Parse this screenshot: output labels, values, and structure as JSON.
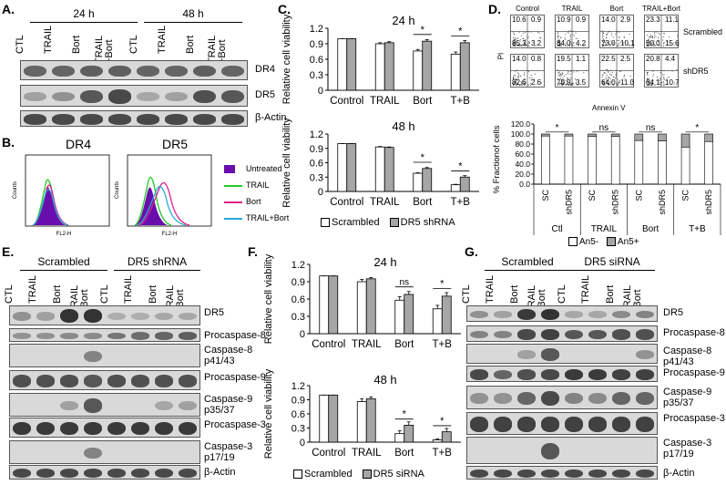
{
  "panel_A": {
    "label": "A.",
    "timepoints": [
      "24 h",
      "48 h"
    ],
    "lanes": [
      "CTL",
      "TRAIL",
      "Bort",
      "TRAIL\n+Bort",
      "CTL",
      "TRAIL",
      "Bort",
      "TRAIL\n+Bort"
    ],
    "rows": [
      "DR4",
      "DR5",
      "β-Actin"
    ]
  },
  "panel_B": {
    "label": "B.",
    "titles": [
      "DR4",
      "DR5"
    ],
    "ylabel": "Counts",
    "xlabel": "FL2-H",
    "legend": [
      {
        "name": "Untreated",
        "color": "#6a0dad"
      },
      {
        "name": "TRAIL",
        "color": "#22cc22"
      },
      {
        "name": "Bort",
        "color": "#e0208a"
      },
      {
        "name": "TRAIL+Bort",
        "color": "#29a9d6"
      }
    ]
  },
  "panel_C": {
    "label": "C.",
    "legend": [
      "Scrambled",
      "DR5 shRNA"
    ]
  },
  "panel_D": {
    "label": "D.",
    "flow_cols": [
      "Control",
      "TRAIL",
      "Bort",
      "TRAIL+Bort"
    ],
    "flow_rows": [
      "Scrambled",
      "shDR5"
    ],
    "flow_x": "Annexin V",
    "flow_y": "PI",
    "quadrants": [
      [
        [
          "10.6",
          "0.9",
          "85.3",
          "3.2"
        ],
        [
          "10.9",
          "0.9",
          "84.0",
          "4.2"
        ],
        [
          "14.0",
          "2.9",
          "73.0",
          "10.1"
        ],
        [
          "23.3",
          "11.1",
          "50.0",
          "15.6"
        ]
      ],
      [
        [
          "14.0",
          "0.8",
          "82.6",
          "2.6"
        ],
        [
          "19.5",
          "1.1",
          "75.9",
          "3.5"
        ],
        [
          "22.5",
          "2.5",
          "64.0",
          "11.0"
        ],
        [
          "20.8",
          "4.4",
          "64.1",
          "10.7"
        ]
      ]
    ],
    "legend": [
      "An5-",
      "An5+"
    ]
  },
  "panel_E": {
    "label": "E.",
    "groups": [
      "Scrambled",
      "DR5 shRNA"
    ],
    "lanes": [
      "CTL",
      "TRAIL",
      "Bort",
      "TRAIL\n+Bort",
      "CTL",
      "TRAIL",
      "Bort",
      "TRAIL\n+Bort"
    ],
    "rows": [
      "DR5",
      "Procaspase-8",
      "Caspase-8\np41/43",
      "Procaspase-9",
      "Caspase-9\np35/37",
      "Procaspase-3",
      "Caspase-3\np17/19",
      "β-Actin"
    ]
  },
  "panel_F": {
    "label": "F.",
    "legend": [
      "Scrambled",
      "DR5 siRNA"
    ]
  },
  "panel_G": {
    "label": "G.",
    "groups": [
      "Scrambled",
      "DR5 siRNA"
    ],
    "lanes": [
      "CTL",
      "TRAIL",
      "Bort",
      "TRAIL\n+Bort",
      "CTL",
      "TRAIL",
      "Bort",
      "TRAIL\n+Bort"
    ],
    "rows": [
      "DR5",
      "Procaspase-8",
      "Caspase-8\np41/43",
      "Procaspase-9",
      "Caspase-9\np35/37",
      "Procaspase-3",
      "Caspase-3\np17/19",
      "β-Actin"
    ]
  },
  "chart_data": [
    {
      "id": "C-24h",
      "type": "bar",
      "title": "24 h",
      "ylabel": "Relative cell viability",
      "categories": [
        "Control",
        "TRAIL",
        "Bort",
        "T+B"
      ],
      "ylim": [
        0,
        1.2
      ],
      "yticks": [
        "0",
        "0.3",
        "0.6",
        "0.9",
        "1.2"
      ],
      "series": [
        {
          "name": "Scrambled",
          "values": [
            1.0,
            0.9,
            0.76,
            0.7
          ]
        },
        {
          "name": "DR5 shRNA",
          "values": [
            1.0,
            0.92,
            0.95,
            0.92
          ]
        }
      ],
      "annotations": [
        "",
        "",
        "*",
        "*"
      ]
    },
    {
      "id": "C-48h",
      "type": "bar",
      "title": "48 h",
      "ylabel": "Relative cell viability",
      "categories": [
        "Control",
        "TRAIL",
        "Bort",
        "T+B"
      ],
      "ylim": [
        0,
        1.2
      ],
      "yticks": [
        "0",
        "0.3",
        "0.6",
        "0.9",
        "1.2"
      ],
      "series": [
        {
          "name": "Scrambled",
          "values": [
            1.0,
            0.93,
            0.38,
            0.14
          ]
        },
        {
          "name": "DR5 shRNA",
          "values": [
            1.0,
            0.92,
            0.48,
            0.3
          ]
        }
      ],
      "annotations": [
        "",
        "",
        "*",
        "*"
      ]
    },
    {
      "id": "D-bar",
      "type": "bar",
      "title": "",
      "ylabel": "% Fractionof cells",
      "categories": [
        "SC",
        "shDR5",
        "SC",
        "shDR5",
        "SC",
        "shDR5",
        "SC",
        "shDR5"
      ],
      "groups": [
        "Ctl",
        "TRAIL",
        "Bort",
        "T+B"
      ],
      "ylim": [
        0,
        120
      ],
      "yticks": [
        "0.0",
        "20.0",
        "40.0",
        "60.0",
        "80.0",
        "100.0",
        "120.0"
      ],
      "series": [
        {
          "name": "An5-",
          "values": [
            96,
            96,
            95,
            95,
            87,
            86,
            74,
            85
          ]
        },
        {
          "name": "An5+",
          "values": [
            4,
            4,
            5,
            5,
            13,
            14,
            26,
            15
          ]
        }
      ],
      "annotations": [
        "*",
        "ns",
        "ns",
        "*"
      ]
    },
    {
      "id": "F-24h",
      "type": "bar",
      "title": "24 h",
      "ylabel": "Relative cell viability",
      "categories": [
        "Control",
        "TRAIL",
        "Bort",
        "T+B"
      ],
      "ylim": [
        0,
        1.2
      ],
      "yticks": [
        "0",
        "0.3",
        "0.6",
        "0.9",
        "1.2"
      ],
      "series": [
        {
          "name": "Scrambled",
          "values": [
            1.0,
            0.9,
            0.58,
            0.43
          ]
        },
        {
          "name": "DR5 siRNA",
          "values": [
            1.0,
            0.95,
            0.68,
            0.65
          ]
        }
      ],
      "annotations": [
        "",
        "",
        "ns",
        "*"
      ]
    },
    {
      "id": "F-48h",
      "type": "bar",
      "title": "48 h",
      "ylabel": "Relative cell viability",
      "categories": [
        "Control",
        "TRAIL",
        "Bort",
        "T+B"
      ],
      "ylim": [
        0,
        1.2
      ],
      "yticks": [
        "0",
        "0.3",
        "0.6",
        "0.9",
        "1.2"
      ],
      "series": [
        {
          "name": "Scrambled",
          "values": [
            1.0,
            0.86,
            0.18,
            0.05
          ]
        },
        {
          "name": "DR5 siRNA",
          "values": [
            1.0,
            0.92,
            0.36,
            0.22
          ]
        }
      ],
      "annotations": [
        "",
        "",
        "*",
        "*"
      ]
    }
  ]
}
